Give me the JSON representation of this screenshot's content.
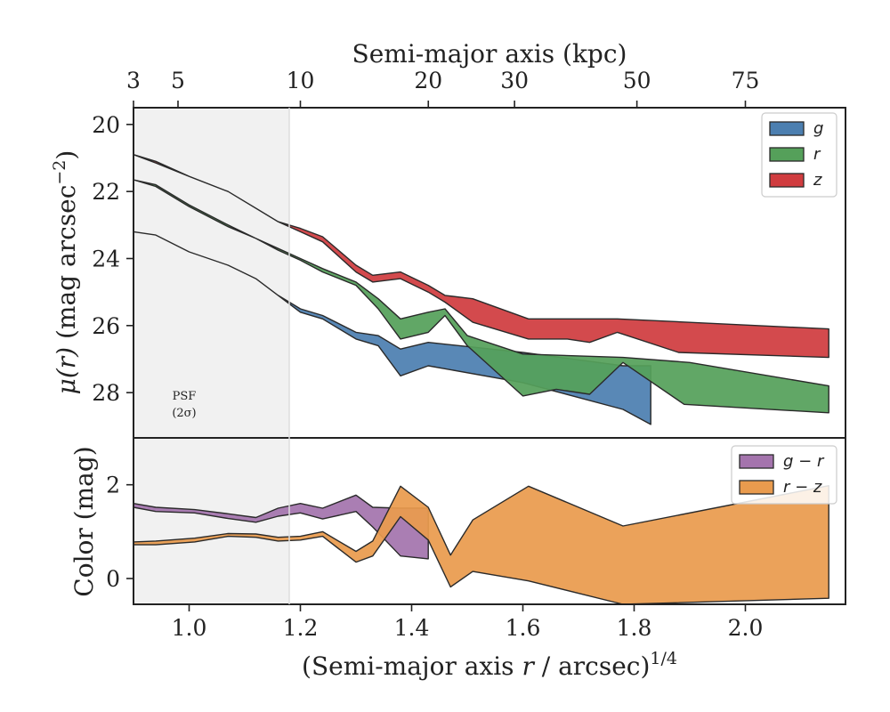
{
  "chart_data": [
    {
      "type": "area",
      "panel": "surface-brightness",
      "x_transform": "Semi-major axis r / arcsec, raised to the 1/4 power",
      "ylabel_prefix": "μ(r)",
      "ylabel_suffix": " (mag arcsec",
      "ylabel_sup": "−2",
      "ylabel_close": ")",
      "top_axis": {
        "label": "Semi-major axis (kpc)",
        "ticks": [
          {
            "label": "3",
            "x": 0.9
          },
          {
            "label": "5",
            "x": 0.98
          },
          {
            "label": "10",
            "x": 1.2
          },
          {
            "label": "20",
            "x": 1.43
          },
          {
            "label": "30",
            "x": 1.585
          },
          {
            "label": "50",
            "x": 1.805
          },
          {
            "label": "75",
            "x": 2.0
          }
        ]
      },
      "ylim": [
        29.35,
        19.5
      ],
      "yticks": [
        "20",
        "22",
        "24",
        "26",
        "28"
      ],
      "yticks_values": [
        20,
        22,
        24,
        26,
        28
      ],
      "psf_label": "PSF",
      "psf_sublabel": "(2σ)",
      "psf_region_x": [
        0.9,
        1.18
      ],
      "legend": {
        "placement": "top-right",
        "entries": [
          "g",
          "r",
          "z"
        ]
      },
      "series": [
        {
          "name": "g",
          "color": "#4c7fb0",
          "upper": [
            [
              0.9,
              23.2
            ],
            [
              0.94,
              23.3
            ],
            [
              1.0,
              23.8
            ],
            [
              1.07,
              24.2
            ],
            [
              1.12,
              24.6
            ],
            [
              1.16,
              25.1
            ],
            [
              1.2,
              25.5
            ],
            [
              1.24,
              25.7
            ],
            [
              1.3,
              26.2
            ],
            [
              1.34,
              26.3
            ],
            [
              1.38,
              26.7
            ],
            [
              1.43,
              26.5
            ],
            [
              1.6,
              26.8
            ],
            [
              1.78,
              27.2
            ],
            [
              1.83,
              27.2
            ]
          ],
          "lower": [
            [
              0.9,
              23.2
            ],
            [
              0.94,
              23.3
            ],
            [
              1.0,
              23.8
            ],
            [
              1.07,
              24.2
            ],
            [
              1.12,
              24.6
            ],
            [
              1.16,
              25.1
            ],
            [
              1.2,
              25.6
            ],
            [
              1.24,
              25.8
            ],
            [
              1.3,
              26.4
            ],
            [
              1.34,
              26.6
            ],
            [
              1.38,
              27.5
            ],
            [
              1.43,
              27.2
            ],
            [
              1.6,
              27.7
            ],
            [
              1.78,
              28.5
            ],
            [
              1.83,
              28.95
            ]
          ]
        },
        {
          "name": "r",
          "color": "#55a05a",
          "upper": [
            [
              0.9,
              21.65
            ],
            [
              0.94,
              21.8
            ],
            [
              1.0,
              22.4
            ],
            [
              1.07,
              23.0
            ],
            [
              1.12,
              23.4
            ],
            [
              1.16,
              23.7
            ],
            [
              1.2,
              24.0
            ],
            [
              1.24,
              24.3
            ],
            [
              1.3,
              24.7
            ],
            [
              1.34,
              25.2
            ],
            [
              1.38,
              25.8
            ],
            [
              1.43,
              25.6
            ],
            [
              1.46,
              25.5
            ],
            [
              1.5,
              26.3
            ],
            [
              1.6,
              26.85
            ],
            [
              1.78,
              26.95
            ],
            [
              1.9,
              27.1
            ],
            [
              2.15,
              27.8
            ]
          ],
          "lower": [
            [
              0.9,
              21.65
            ],
            [
              0.94,
              21.85
            ],
            [
              1.0,
              22.45
            ],
            [
              1.07,
              23.05
            ],
            [
              1.12,
              23.4
            ],
            [
              1.16,
              23.75
            ],
            [
              1.2,
              24.05
            ],
            [
              1.24,
              24.4
            ],
            [
              1.3,
              24.8
            ],
            [
              1.34,
              25.5
            ],
            [
              1.38,
              26.4
            ],
            [
              1.43,
              26.2
            ],
            [
              1.46,
              25.7
            ],
            [
              1.5,
              26.6
            ],
            [
              1.6,
              28.1
            ],
            [
              1.66,
              27.9
            ],
            [
              1.72,
              28.05
            ],
            [
              1.78,
              27.1
            ],
            [
              1.89,
              28.35
            ],
            [
              2.15,
              28.6
            ]
          ]
        },
        {
          "name": "z",
          "color": "#d03c3f",
          "upper": [
            [
              0.9,
              20.9
            ],
            [
              0.94,
              21.1
            ],
            [
              1.0,
              21.55
            ],
            [
              1.07,
              22.0
            ],
            [
              1.12,
              22.5
            ],
            [
              1.16,
              22.9
            ],
            [
              1.2,
              23.1
            ],
            [
              1.24,
              23.35
            ],
            [
              1.3,
              24.2
            ],
            [
              1.33,
              24.5
            ],
            [
              1.38,
              24.4
            ],
            [
              1.43,
              24.8
            ],
            [
              1.46,
              25.1
            ],
            [
              1.51,
              25.2
            ],
            [
              1.61,
              25.8
            ],
            [
              1.77,
              25.8
            ],
            [
              2.15,
              26.1
            ]
          ],
          "lower": [
            [
              0.9,
              20.9
            ],
            [
              0.94,
              21.15
            ],
            [
              1.0,
              21.55
            ],
            [
              1.07,
              22.0
            ],
            [
              1.12,
              22.5
            ],
            [
              1.16,
              22.9
            ],
            [
              1.2,
              23.2
            ],
            [
              1.24,
              23.5
            ],
            [
              1.3,
              24.4
            ],
            [
              1.33,
              24.7
            ],
            [
              1.38,
              24.6
            ],
            [
              1.43,
              25.0
            ],
            [
              1.46,
              25.3
            ],
            [
              1.51,
              25.9
            ],
            [
              1.61,
              26.4
            ],
            [
              1.68,
              26.4
            ],
            [
              1.72,
              26.5
            ],
            [
              1.77,
              26.2
            ],
            [
              1.88,
              26.8
            ],
            [
              2.15,
              26.95
            ]
          ]
        }
      ]
    },
    {
      "type": "area",
      "panel": "color",
      "ylabel": "Color (mag)",
      "xlabel_prefix": "(Semi-major axis ",
      "xlabel_var": "r",
      "xlabel_mid": " / arcsec)",
      "xlabel_sup": "1/4",
      "xlim": [
        0.9,
        2.18
      ],
      "xticks": [
        "1.0",
        "1.2",
        "1.4",
        "1.6",
        "1.8",
        "2.0"
      ],
      "xticks_values": [
        1.0,
        1.2,
        1.4,
        1.6,
        1.8,
        2.0
      ],
      "ylim": [
        -0.55,
        3.0
      ],
      "yticks": [
        "0",
        "2"
      ],
      "yticks_values": [
        0,
        2
      ],
      "legend": {
        "placement": "top-right",
        "entries": [
          "g − r",
          "r − z"
        ]
      },
      "series": [
        {
          "name": "g − r",
          "color": "#a474ad",
          "upper": [
            [
              0.9,
              1.6
            ],
            [
              0.94,
              1.52
            ],
            [
              1.01,
              1.47
            ],
            [
              1.07,
              1.38
            ],
            [
              1.12,
              1.3
            ],
            [
              1.16,
              1.5
            ],
            [
              1.2,
              1.6
            ],
            [
              1.24,
              1.5
            ],
            [
              1.3,
              1.78
            ],
            [
              1.33,
              1.52
            ],
            [
              1.38,
              1.5
            ],
            [
              1.43,
              1.5
            ]
          ],
          "lower": [
            [
              0.9,
              1.52
            ],
            [
              0.94,
              1.43
            ],
            [
              1.01,
              1.4
            ],
            [
              1.07,
              1.28
            ],
            [
              1.12,
              1.2
            ],
            [
              1.16,
              1.33
            ],
            [
              1.2,
              1.4
            ],
            [
              1.24,
              1.27
            ],
            [
              1.3,
              1.43
            ],
            [
              1.33,
              1.1
            ],
            [
              1.38,
              0.48
            ],
            [
              1.43,
              0.42
            ]
          ]
        },
        {
          "name": "r − z",
          "color": "#e99b4e",
          "upper": [
            [
              0.9,
              0.78
            ],
            [
              0.94,
              0.8
            ],
            [
              1.01,
              0.86
            ],
            [
              1.07,
              0.96
            ],
            [
              1.12,
              0.95
            ],
            [
              1.16,
              0.88
            ],
            [
              1.2,
              0.9
            ],
            [
              1.24,
              1.0
            ],
            [
              1.3,
              0.58
            ],
            [
              1.33,
              0.8
            ],
            [
              1.38,
              1.97
            ],
            [
              1.43,
              1.52
            ],
            [
              1.47,
              0.5
            ],
            [
              1.51,
              1.25
            ],
            [
              1.61,
              1.97
            ],
            [
              1.78,
              1.12
            ],
            [
              2.15,
              1.98
            ]
          ],
          "lower": [
            [
              0.9,
              0.72
            ],
            [
              0.94,
              0.72
            ],
            [
              1.01,
              0.78
            ],
            [
              1.07,
              0.9
            ],
            [
              1.12,
              0.88
            ],
            [
              1.16,
              0.8
            ],
            [
              1.2,
              0.82
            ],
            [
              1.24,
              0.9
            ],
            [
              1.3,
              0.35
            ],
            [
              1.33,
              0.48
            ],
            [
              1.38,
              1.32
            ],
            [
              1.43,
              0.82
            ],
            [
              1.47,
              -0.18
            ],
            [
              1.51,
              0.15
            ],
            [
              1.61,
              -0.05
            ],
            [
              1.78,
              -0.55
            ],
            [
              2.15,
              -0.42
            ]
          ]
        }
      ]
    }
  ]
}
